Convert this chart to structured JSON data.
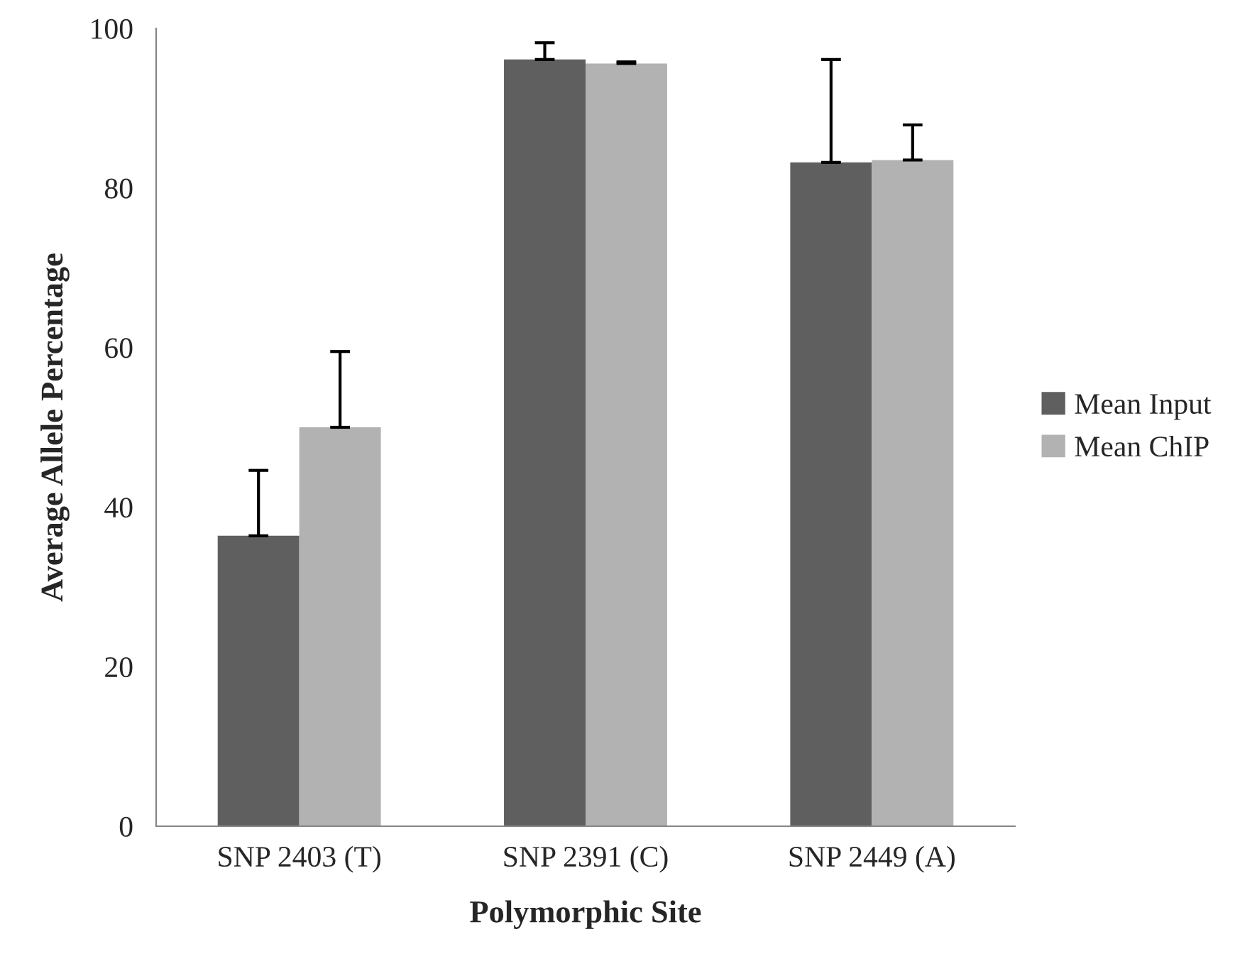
{
  "chart_data": {
    "type": "bar",
    "xlabel": "Polymorphic Site",
    "ylabel": "Average Allele Percentage",
    "categories": [
      "SNP 2403 (T)",
      "SNP 2391 (C)",
      "SNP 2449 (A)"
    ],
    "series": [
      {
        "name": "Mean Input",
        "color": "#5f5f5f",
        "values": [
          36.4,
          96.1,
          83.2
        ],
        "errors": [
          [
            36.4,
            44.6
          ],
          [
            96.1,
            98.2
          ],
          [
            83.2,
            96.1
          ]
        ]
      },
      {
        "name": "Mean ChIP",
        "color": "#b2b2b2",
        "values": [
          50.0,
          95.6,
          83.5
        ],
        "errors": [
          [
            50.0,
            59.5
          ],
          [
            95.6,
            95.8
          ],
          [
            83.5,
            87.9
          ]
        ]
      }
    ],
    "ylim": [
      0,
      100
    ],
    "yticks": [
      0,
      20,
      40,
      60,
      80,
      100
    ],
    "grid": false,
    "legend": "right"
  }
}
